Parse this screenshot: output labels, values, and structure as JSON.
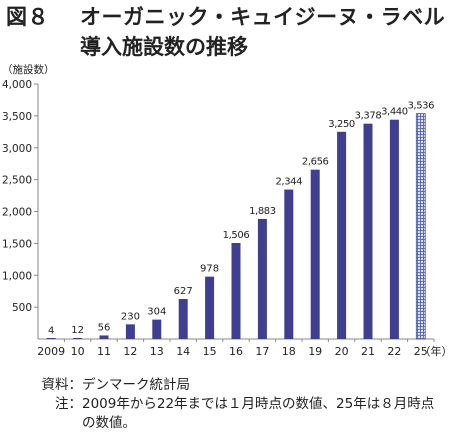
{
  "figure": {
    "label": "図８",
    "title_line1": "オーガニック・キュイジーヌ・ラベル",
    "title_line2": "導入施設数の推移"
  },
  "source": {
    "source_label": "資料：",
    "source_text": "デンマーク統計局",
    "note_label": "注：",
    "note_text": "2009年から22年までは１月時点の数値、25年は８月時点の数値。"
  },
  "chart_data": {
    "type": "bar",
    "y_unit_label": "（施設数）",
    "x_unit_label": "（年）",
    "categories": [
      "2009",
      "10",
      "11",
      "12",
      "13",
      "14",
      "15",
      "16",
      "17",
      "18",
      "19",
      "20",
      "21",
      "22",
      "25"
    ],
    "values": [
      4,
      12,
      56,
      230,
      304,
      627,
      978,
      1506,
      1883,
      2344,
      2656,
      3250,
      3378,
      3440,
      3536
    ],
    "data_labels": [
      "4",
      "12",
      "56",
      "230",
      "304",
      "627",
      "978",
      "1,506",
      "1,883",
      "2,344",
      "2,656",
      "3,250",
      "3,378",
      "3,440",
      "3,536"
    ],
    "ylim": [
      0,
      4000
    ],
    "yticks": [
      500,
      1000,
      1500,
      2000,
      2500,
      3000,
      3500,
      4000
    ],
    "ytick_labels": [
      "500",
      "1,000",
      "1,500",
      "2,000",
      "2,500",
      "3,000",
      "3,500",
      "4,000"
    ],
    "grid": false,
    "colors": {
      "bar": "#3f3f8f",
      "bar_highlight_fill": "#d8dcef",
      "bar_highlight_grid": "#4a5aa8",
      "axis": "#888888"
    },
    "highlighted_category": "25"
  }
}
